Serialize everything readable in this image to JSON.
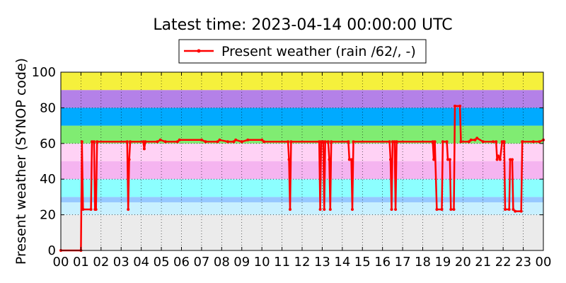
{
  "chart_data": {
    "type": "line",
    "title": "Latest time: 2023-04-14 00:00:00 UTC",
    "ylabel": "Present weather (SYNOP code)",
    "xlabel": "",
    "ylim": [
      0,
      100
    ],
    "xlim": [
      0,
      24
    ],
    "grid": true,
    "legend_placement": "top-center",
    "x_tick_labels": [
      "00",
      "01",
      "02",
      "03",
      "04",
      "05",
      "06",
      "07",
      "08",
      "09",
      "10",
      "11",
      "12",
      "13",
      "14",
      "15",
      "16",
      "17",
      "18",
      "19",
      "20",
      "21",
      "22",
      "23",
      "00"
    ],
    "y_tick_labels": [
      "0",
      "20",
      "40",
      "60",
      "80",
      "100"
    ],
    "series": [
      {
        "name": "Present weather (rain /62/, -)",
        "color": "#ff0000",
        "points": [
          [
            0.0,
            0
          ],
          [
            1.0,
            0
          ],
          [
            1.05,
            61
          ],
          [
            1.1,
            23
          ],
          [
            1.5,
            23
          ],
          [
            1.55,
            61
          ],
          [
            1.65,
            61
          ],
          [
            1.7,
            23
          ],
          [
            1.75,
            23
          ],
          [
            1.8,
            61
          ],
          [
            3.3,
            61
          ],
          [
            3.35,
            23
          ],
          [
            3.4,
            51
          ],
          [
            3.45,
            61
          ],
          [
            4.1,
            61
          ],
          [
            4.15,
            57
          ],
          [
            4.2,
            61
          ],
          [
            4.8,
            61
          ],
          [
            4.95,
            62
          ],
          [
            5.2,
            61
          ],
          [
            5.8,
            61
          ],
          [
            5.9,
            62
          ],
          [
            7.0,
            62
          ],
          [
            7.2,
            61
          ],
          [
            7.8,
            61
          ],
          [
            7.9,
            62
          ],
          [
            8.3,
            61
          ],
          [
            8.6,
            61
          ],
          [
            8.7,
            62
          ],
          [
            9.0,
            61
          ],
          [
            9.3,
            62
          ],
          [
            10.0,
            62
          ],
          [
            10.1,
            61
          ],
          [
            11.3,
            61
          ],
          [
            11.35,
            51
          ],
          [
            11.4,
            23
          ],
          [
            11.45,
            61
          ],
          [
            12.85,
            61
          ],
          [
            12.9,
            23
          ],
          [
            12.95,
            61
          ],
          [
            13.05,
            61
          ],
          [
            13.1,
            23
          ],
          [
            13.15,
            61
          ],
          [
            13.3,
            61
          ],
          [
            13.35,
            51
          ],
          [
            13.4,
            23
          ],
          [
            13.45,
            61
          ],
          [
            14.3,
            61
          ],
          [
            14.35,
            51
          ],
          [
            14.45,
            51
          ],
          [
            14.5,
            23
          ],
          [
            14.55,
            61
          ],
          [
            16.35,
            61
          ],
          [
            16.4,
            51
          ],
          [
            16.45,
            23
          ],
          [
            16.5,
            61
          ],
          [
            16.6,
            61
          ],
          [
            16.65,
            23
          ],
          [
            16.7,
            61
          ],
          [
            18.5,
            61
          ],
          [
            18.55,
            51
          ],
          [
            18.6,
            61
          ],
          [
            18.7,
            23
          ],
          [
            18.95,
            23
          ],
          [
            19.0,
            61
          ],
          [
            19.2,
            61
          ],
          [
            19.25,
            51
          ],
          [
            19.35,
            51
          ],
          [
            19.4,
            23
          ],
          [
            19.55,
            23
          ],
          [
            19.6,
            81
          ],
          [
            19.85,
            81
          ],
          [
            19.9,
            61
          ],
          [
            20.3,
            61
          ],
          [
            20.4,
            62
          ],
          [
            20.6,
            62
          ],
          [
            20.7,
            63
          ],
          [
            21.0,
            61
          ],
          [
            21.5,
            61
          ],
          [
            21.65,
            61
          ],
          [
            21.7,
            51
          ],
          [
            21.75,
            53
          ],
          [
            21.85,
            51
          ],
          [
            21.95,
            61
          ],
          [
            22.05,
            61
          ],
          [
            22.1,
            23
          ],
          [
            22.3,
            23
          ],
          [
            22.35,
            51
          ],
          [
            22.45,
            51
          ],
          [
            22.5,
            23
          ],
          [
            22.6,
            22
          ],
          [
            22.9,
            22
          ],
          [
            22.95,
            61
          ],
          [
            23.5,
            61
          ],
          [
            23.8,
            61
          ],
          [
            24.0,
            62
          ]
        ]
      }
    ],
    "background_bands": [
      {
        "from": 0,
        "to": 20,
        "color": "#ebebeb"
      },
      {
        "from": 20,
        "to": 27,
        "color": "#c8f0ff"
      },
      {
        "from": 27,
        "to": 30,
        "color": "#96c8ff"
      },
      {
        "from": 30,
        "to": 40,
        "color": "#8cffff"
      },
      {
        "from": 40,
        "to": 50,
        "color": "#f5b4f0"
      },
      {
        "from": 50,
        "to": 60,
        "color": "#ffd2f5"
      },
      {
        "from": 60,
        "to": 70,
        "color": "#80ec72"
      },
      {
        "from": 70,
        "to": 80,
        "color": "#00aaff"
      },
      {
        "from": 80,
        "to": 90,
        "color": "#b481e8"
      },
      {
        "from": 90,
        "to": 100,
        "color": "#f5f03c"
      }
    ]
  }
}
